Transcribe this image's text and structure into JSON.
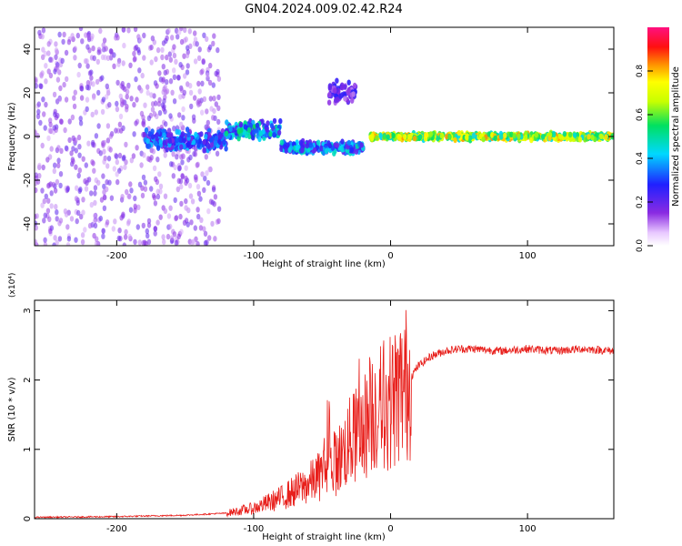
{
  "title": "GN04.2024.009.02.42.R24",
  "chart_data": [
    {
      "type": "heatmap",
      "title": "",
      "xlabel": "Height of straight line (km)",
      "ylabel": "Frequency (Hz)",
      "xlim": [
        -260,
        163
      ],
      "ylim": [
        -50,
        50
      ],
      "xticks": [
        -200,
        -100,
        0,
        100
      ],
      "yticks": [
        -40,
        -20,
        0,
        20,
        40
      ],
      "grid": false,
      "colorbar": {
        "label": "Normalized spectral amplitude",
        "range": [
          0.0,
          1.0
        ],
        "ticks": [
          "0.0",
          "0.2",
          "0.4",
          "0.6",
          "0.8"
        ],
        "colormap": "rainbow (white-violet-blue-cyan-green-yellow-red-magenta)"
      },
      "bands": [
        {
          "x": [
            -260,
            -125
          ],
          "f_center": 0,
          "f_spread": 50,
          "amplitude": 0.15,
          "note": "broad noisy region"
        },
        {
          "x": [
            -180,
            -120
          ],
          "f_center": -2,
          "f_spread": 6,
          "amplitude": 0.3
        },
        {
          "x": [
            -120,
            -80
          ],
          "f_center": 3,
          "f_spread": 5,
          "amplitude": 0.4
        },
        {
          "x": [
            -80,
            -20
          ],
          "f_center": -5,
          "f_spread": 4,
          "amplitude": 0.35
        },
        {
          "x": [
            -45,
            -25
          ],
          "f_center": 20,
          "f_spread": 6,
          "amplitude": 0.2
        },
        {
          "x": [
            -15,
            163
          ],
          "f_center": 0,
          "f_spread": 2,
          "amplitude": 0.7,
          "note": "narrow strong line at 0 Hz"
        }
      ]
    },
    {
      "type": "line",
      "title": "",
      "xlabel": "Height of straight line (km)",
      "ylabel": "SNR (10 * v/v)",
      "yscale_label": "(x10⁴)",
      "xlim": [
        -260,
        163
      ],
      "ylim": [
        0,
        3.15
      ],
      "xticks": [
        -200,
        -100,
        0,
        100
      ],
      "yticks": [
        0,
        1,
        2,
        3
      ],
      "grid": false,
      "series": [
        {
          "color": "#e8201c",
          "x": [
            -260,
            -200,
            -150,
            -120,
            -100,
            -80,
            -60,
            -40,
            -30,
            -20,
            -12,
            -5,
            0,
            10,
            20,
            30,
            40,
            50,
            60,
            80,
            100,
            120,
            140,
            163
          ],
          "y": [
            0.02,
            0.03,
            0.05,
            0.08,
            0.15,
            0.3,
            0.5,
            0.8,
            1.1,
            1.3,
            1.6,
            1.6,
            1.7,
            1.9,
            2.2,
            2.35,
            2.42,
            2.45,
            2.45,
            2.42,
            2.45,
            2.42,
            2.45,
            2.42
          ]
        }
      ]
    }
  ]
}
